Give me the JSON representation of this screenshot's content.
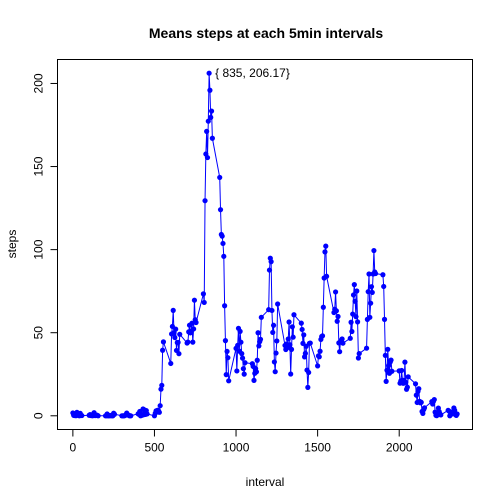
{
  "chart_data": {
    "type": "line",
    "title": "Means steps at each 5min intervals",
    "x_label": "interval",
    "y_label": "steps",
    "annotation": "{ 835, 206.17}",
    "x": [
      0,
      5,
      10,
      15,
      20,
      25,
      30,
      35,
      40,
      45,
      50,
      55,
      100,
      105,
      110,
      115,
      120,
      125,
      130,
      135,
      140,
      145,
      150,
      155,
      200,
      205,
      210,
      215,
      220,
      225,
      230,
      235,
      240,
      245,
      250,
      255,
      300,
      305,
      310,
      315,
      320,
      325,
      330,
      335,
      340,
      345,
      350,
      355,
      400,
      405,
      410,
      415,
      420,
      425,
      430,
      435,
      440,
      445,
      450,
      455,
      500,
      505,
      510,
      515,
      520,
      525,
      530,
      535,
      540,
      545,
      550,
      555,
      600,
      605,
      610,
      615,
      620,
      625,
      630,
      635,
      640,
      645,
      650,
      655,
      700,
      705,
      710,
      715,
      720,
      725,
      730,
      735,
      740,
      745,
      750,
      755,
      800,
      805,
      810,
      815,
      820,
      825,
      830,
      835,
      840,
      845,
      850,
      855,
      900,
      905,
      910,
      915,
      920,
      925,
      930,
      935,
      940,
      945,
      950,
      955,
      1000,
      1005,
      1010,
      1015,
      1020,
      1025,
      1030,
      1035,
      1040,
      1045,
      1050,
      1055,
      1100,
      1105,
      1110,
      1115,
      1120,
      1125,
      1130,
      1135,
      1140,
      1145,
      1150,
      1155,
      1200,
      1205,
      1210,
      1215,
      1220,
      1225,
      1230,
      1235,
      1240,
      1245,
      1250,
      1255,
      1300,
      1305,
      1310,
      1315,
      1320,
      1325,
      1330,
      1335,
      1340,
      1345,
      1350,
      1355,
      1400,
      1405,
      1410,
      1415,
      1420,
      1425,
      1430,
      1435,
      1440,
      1445,
      1450,
      1455,
      1500,
      1505,
      1510,
      1515,
      1520,
      1525,
      1530,
      1535,
      1540,
      1545,
      1550,
      1555,
      1600,
      1605,
      1610,
      1615,
      1620,
      1625,
      1630,
      1635,
      1640,
      1645,
      1650,
      1655,
      1700,
      1705,
      1710,
      1715,
      1720,
      1725,
      1730,
      1735,
      1740,
      1745,
      1750,
      1755,
      1800,
      1805,
      1810,
      1815,
      1820,
      1825,
      1830,
      1835,
      1840,
      1845,
      1850,
      1855,
      1900,
      1905,
      1910,
      1915,
      1920,
      1925,
      1930,
      1935,
      1940,
      1945,
      1950,
      1955,
      2000,
      2005,
      2010,
      2015,
      2020,
      2025,
      2030,
      2035,
      2040,
      2045,
      2050,
      2055,
      2100,
      2105,
      2110,
      2115,
      2120,
      2125,
      2130,
      2135,
      2140,
      2145,
      2150,
      2155,
      2200,
      2205,
      2210,
      2215,
      2220,
      2225,
      2230,
      2235,
      2240,
      2245,
      2250,
      2255,
      2300,
      2305,
      2310,
      2315,
      2320,
      2325,
      2330,
      2335,
      2340,
      2345,
      2350,
      2355
    ],
    "series": [
      {
        "name": "steps",
        "color": "#0000ff",
        "values": [
          1.72,
          0.34,
          0.13,
          0.15,
          0.08,
          2.09,
          0.53,
          0.87,
          0,
          1.47,
          0.3,
          0.13,
          0.32,
          0.68,
          0.15,
          0.34,
          0,
          1.11,
          1.83,
          0.17,
          0.17,
          0.38,
          0.26,
          0,
          0,
          0,
          1.13,
          0,
          0,
          0.13,
          0,
          0.23,
          0,
          0,
          1.55,
          0.94,
          0,
          0,
          0,
          0,
          0.21,
          0.62,
          1.62,
          0.58,
          0.49,
          0.08,
          0,
          0,
          1.19,
          0.94,
          2.57,
          0,
          0.34,
          0.36,
          4.11,
          0.66,
          3.49,
          0.83,
          3.11,
          1.11,
          0,
          1.57,
          3,
          2.25,
          3.32,
          2.96,
          2.09,
          6.06,
          16.02,
          18.34,
          39.45,
          44.49,
          31.49,
          49.26,
          53.77,
          63.45,
          49.96,
          47.08,
          52.15,
          39.34,
          44.02,
          44.17,
          37.36,
          49.04,
          43.81,
          44.38,
          50.51,
          54.51,
          49.92,
          50.98,
          55.68,
          44.32,
          52.26,
          69.55,
          57.85,
          56.15,
          73.38,
          68.21,
          129.43,
          157.53,
          171.15,
          155.4,
          177.3,
          206.17,
          195.92,
          179.57,
          183.4,
          167.02,
          143.45,
          124.04,
          109.11,
          108.11,
          103.72,
          95.96,
          66.21,
          45.23,
          24.79,
          38.75,
          34.98,
          21.06,
          40.57,
          26.98,
          42.42,
          52.66,
          38.92,
          50.79,
          44.28,
          37.42,
          34.7,
          28.34,
          25.09,
          31.94,
          31.36,
          29.68,
          21.32,
          25.55,
          28.38,
          26.47,
          33.43,
          49.98,
          42.04,
          44.6,
          46.04,
          59.26,
          63.87,
          87.7,
          94.85,
          92.77,
          63.4,
          50.17,
          54.47,
          32.42,
          26.53,
          37.74,
          45.06,
          67.28,
          42.34,
          39.89,
          43.26,
          40.98,
          46.25,
          56.43,
          42.75,
          25.13,
          39.96,
          53.55,
          47.32,
          60.81,
          55.75,
          51.96,
          43.58,
          48.7,
          35.47,
          37.55,
          41.85,
          27.51,
          17.11,
          26.08,
          43.62,
          43.77,
          30.02,
          36.08,
          35.49,
          38.85,
          45.96,
          47.75,
          48.13,
          65.32,
          82.91,
          98.66,
          102.11,
          83.96,
          62.13,
          64.13,
          74.55,
          63.17,
          56.91,
          59.77,
          43.87,
          38.57,
          44.66,
          45.45,
          46.21,
          43.68,
          46.62,
          56.3,
          50.72,
          61.23,
          72.72,
          78.94,
          68.94,
          59.66,
          75.09,
          56.51,
          34.77,
          37.45,
          40.68,
          58.02,
          74.7,
          85.32,
          59.26,
          67.77,
          77.7,
          74.25,
          85.34,
          99.45,
          86.58,
          85.6,
          84.87,
          77.83,
          58.04,
          36.34,
          20.72,
          27.4,
          40.02,
          30.21,
          25.55,
          32.32,
          33.53,
          26.81,
          27.04,
          19.62,
          21.04,
          27.3,
          21.34,
          19.55,
          21.32,
          32.3,
          20.15,
          15.94,
          17.23,
          23.45,
          19.25,
          12.45,
          8.02,
          14.66,
          16.3,
          8.68,
          7.79,
          8.13,
          2.62,
          1.45,
          3.68,
          4.81,
          8.51,
          7.08,
          8.7,
          9.75,
          2.21,
          0.32,
          0.11,
          1.6,
          4.6,
          2.5,
          1.2,
          0.5,
          3.3,
          2.85,
          0,
          0.83,
          0.96,
          1.58,
          2.6,
          4.7,
          3.3,
          0.64,
          0.23,
          1.08
        ]
      }
    ],
    "xlim": [
      -94.2,
      2449.2
    ],
    "ylim": [
      -8.25,
      214.42
    ],
    "xticks": [
      0,
      500,
      1000,
      1500,
      2000
    ],
    "yticks": [
      0,
      50,
      100,
      150,
      200
    ]
  }
}
